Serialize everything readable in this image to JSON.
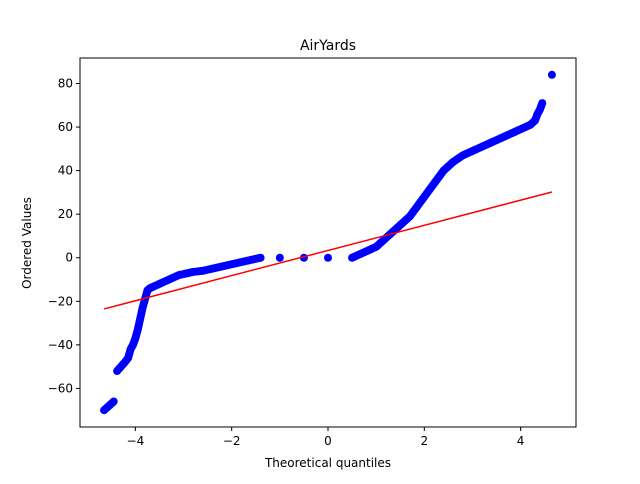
{
  "chart_data": {
    "type": "scatter",
    "title": "AirYards",
    "xlabel": "Theoretical quantiles",
    "ylabel": "Ordered Values",
    "xlim": [
      -5.15,
      5.15
    ],
    "ylim": [
      -77.7,
      91.7
    ],
    "x_ticks": [
      -4,
      -2,
      0,
      2,
      4
    ],
    "y_ticks": [
      -60,
      -40,
      -20,
      0,
      20,
      40,
      60,
      80
    ],
    "x_tick_labels": [
      "−4",
      "−2",
      "0",
      "2",
      "4"
    ],
    "y_tick_labels": [
      "−60",
      "−40",
      "−20",
      "0",
      "20",
      "40",
      "60",
      "80"
    ],
    "grid": false,
    "series": [
      {
        "kind": "points",
        "color": "#0000ff",
        "points": [
          [
            -4.65,
            -70
          ],
          [
            -4.45,
            -66
          ],
          [
            -4.38,
            -52
          ],
          [
            -4.3,
            -50
          ],
          [
            -4.22,
            -48
          ],
          [
            -4.15,
            -46
          ],
          [
            -4.1,
            -42
          ],
          [
            -4.05,
            -40
          ],
          [
            -4.0,
            -37
          ],
          [
            -3.95,
            -33
          ],
          [
            -3.9,
            -28
          ],
          [
            -3.85,
            -23
          ],
          [
            -3.8,
            -19
          ],
          [
            -3.75,
            -15
          ],
          [
            -3.7,
            -14
          ],
          [
            -3.6,
            -13
          ],
          [
            -3.5,
            -12
          ],
          [
            -3.4,
            -11
          ],
          [
            -3.3,
            -10
          ],
          [
            -3.2,
            -9
          ],
          [
            -3.1,
            -8
          ],
          [
            -3.0,
            -7.5
          ],
          [
            -2.9,
            -7
          ],
          [
            -2.8,
            -6.5
          ],
          [
            -2.6,
            -6
          ],
          [
            -2.4,
            -5
          ],
          [
            -2.2,
            -4
          ],
          [
            -2.0,
            -3
          ],
          [
            -1.8,
            -2
          ],
          [
            -1.6,
            -1
          ],
          [
            -1.4,
            0
          ],
          [
            -1.0,
            0
          ],
          [
            -0.5,
            0
          ],
          [
            0.0,
            0
          ],
          [
            0.5,
            0
          ],
          [
            0.6,
            1
          ],
          [
            0.7,
            2
          ],
          [
            0.8,
            3
          ],
          [
            0.9,
            4
          ],
          [
            1.0,
            5
          ],
          [
            1.1,
            7
          ],
          [
            1.2,
            9
          ],
          [
            1.3,
            11
          ],
          [
            1.4,
            13
          ],
          [
            1.5,
            15
          ],
          [
            1.6,
            17
          ],
          [
            1.7,
            19
          ],
          [
            1.8,
            22
          ],
          [
            1.9,
            25
          ],
          [
            2.0,
            28
          ],
          [
            2.1,
            31
          ],
          [
            2.2,
            34
          ],
          [
            2.3,
            37
          ],
          [
            2.4,
            40
          ],
          [
            2.5,
            42
          ],
          [
            2.6,
            44
          ],
          [
            2.7,
            45.5
          ],
          [
            2.8,
            47
          ],
          [
            2.9,
            48
          ],
          [
            3.0,
            49
          ],
          [
            3.2,
            51
          ],
          [
            3.4,
            53
          ],
          [
            3.6,
            55
          ],
          [
            3.8,
            57
          ],
          [
            4.0,
            59
          ],
          [
            4.2,
            61
          ],
          [
            4.3,
            63
          ],
          [
            4.35,
            66
          ],
          [
            4.4,
            68
          ],
          [
            4.45,
            71
          ],
          [
            4.65,
            84
          ]
        ]
      },
      {
        "kind": "fit-line",
        "color": "#ff0000",
        "points": [
          [
            -4.65,
            -23.5
          ],
          [
            4.65,
            30.2
          ]
        ]
      }
    ]
  }
}
